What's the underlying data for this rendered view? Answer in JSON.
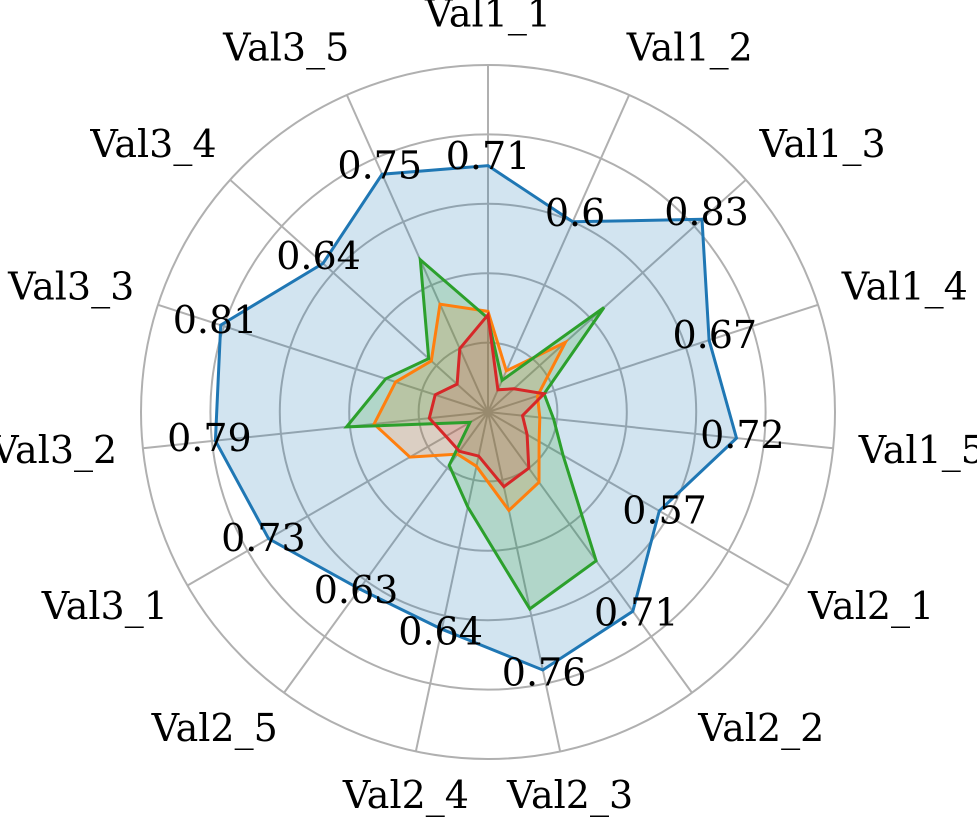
{
  "chart_data": {
    "type": "radar",
    "categories": [
      "Val1_1",
      "Val1_2",
      "Val1_3",
      "Val1_4",
      "Val1_5",
      "Val2_1",
      "Val2_2",
      "Val2_3",
      "Val2_4",
      "Val2_5",
      "Val3_1",
      "Val3_2",
      "Val3_3",
      "Val3_4",
      "Val3_5"
    ],
    "rlim": [
      0,
      1
    ],
    "rings": [
      0.2,
      0.4,
      0.6,
      0.8,
      1.0
    ],
    "grid": true,
    "legend": "none",
    "series": [
      {
        "color": "#1f77b4",
        "fill": true,
        "fill_opacity": 0.2,
        "values": [
          0.71,
          0.6,
          0.83,
          0.67,
          0.72,
          0.57,
          0.71,
          0.76,
          0.64,
          0.63,
          0.73,
          0.79,
          0.81,
          0.64,
          0.75
        ]
      },
      {
        "color": "#ff7f0e",
        "fill": true,
        "fill_opacity": 0.2,
        "values": [
          0.29,
          0.13,
          0.3,
          0.15,
          0.15,
          0.17,
          0.25,
          0.29,
          0.16,
          0.15,
          0.26,
          0.33,
          0.28,
          0.22,
          0.34
        ]
      },
      {
        "color": "#2ca02c",
        "fill": true,
        "fill_opacity": 0.2,
        "values": [
          0.27,
          0.1,
          0.45,
          0.17,
          0.19,
          0.25,
          0.53,
          0.58,
          0.28,
          0.19,
          0.06,
          0.41,
          0.31,
          0.23,
          0.48
        ]
      },
      {
        "color": "#d62728",
        "fill": true,
        "fill_opacity": 0.15,
        "values": [
          0.28,
          0.07,
          0.1,
          0.17,
          0.1,
          0.13,
          0.2,
          0.22,
          0.13,
          0.14,
          0.14,
          0.17,
          0.16,
          0.12,
          0.2
        ]
      }
    ],
    "data_labels": [
      "0.71",
      "0.6",
      "0.83",
      "0.67",
      "0.72",
      "0.57",
      "0.71",
      "0.76",
      "0.64",
      "0.63",
      "0.73",
      "0.79",
      "0.81",
      "0.64",
      "0.75"
    ]
  },
  "colors": {
    "grid": "#b0b0b0",
    "outer_ring": "#b0b0b0"
  }
}
